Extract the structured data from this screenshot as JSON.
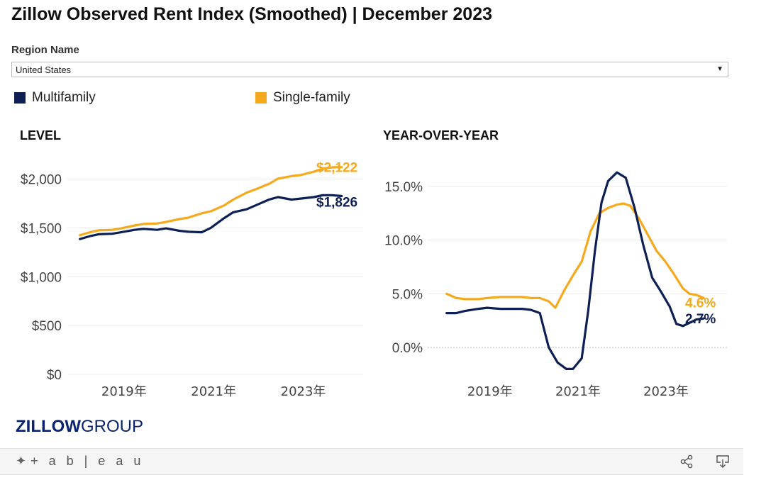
{
  "title": "Zillow Observed Rent Index (Smoothed) | December 2023",
  "filter": {
    "label": "Region Name",
    "value": "United States"
  },
  "legend": [
    {
      "name": "Multifamily",
      "color": "#0e1f56"
    },
    {
      "name": "Single-family",
      "color": "#f5a91c"
    }
  ],
  "brand": {
    "logo_bold": "ZILLOW",
    "logo_light": "GROUP",
    "tableau": "+ a b | e a u"
  },
  "toolbar": {
    "share_icon": "share-icon",
    "download_icon": "download-icon"
  },
  "chart_data": [
    {
      "type": "line",
      "title": "LEVEL",
      "ylim": [
        0,
        2200
      ],
      "y_ticks": [
        {
          "value": 0,
          "label": "$0"
        },
        {
          "value": 500,
          "label": "$500"
        },
        {
          "value": 1000,
          "label": "$1,000"
        },
        {
          "value": 1500,
          "label": "$1,500"
        },
        {
          "value": 2000,
          "label": "$2,000"
        }
      ],
      "x_ticks": [
        {
          "value": 2019,
          "label": "2019年"
        },
        {
          "value": 2021,
          "label": "2021年"
        },
        {
          "value": 2023,
          "label": "2023年"
        }
      ],
      "xlim": [
        2017.8,
        2024.4
      ],
      "series": [
        {
          "name": "Single-family",
          "color": "#f5a91c",
          "end_label": "$2,122",
          "x": [
            2018.08,
            2018.3,
            2018.5,
            2018.8,
            2019.0,
            2019.3,
            2019.5,
            2019.8,
            2020.0,
            2020.3,
            2020.5,
            2020.8,
            2021.0,
            2021.3,
            2021.5,
            2021.8,
            2022.0,
            2022.3,
            2022.5,
            2022.8,
            2023.0,
            2023.3,
            2023.5,
            2023.7,
            2023.92
          ],
          "y": [
            1425,
            1455,
            1475,
            1480,
            1495,
            1525,
            1540,
            1545,
            1560,
            1590,
            1605,
            1650,
            1670,
            1730,
            1790,
            1860,
            1895,
            1950,
            2005,
            2030,
            2040,
            2075,
            2105,
            2120,
            2122
          ]
        },
        {
          "name": "Multifamily",
          "color": "#0e1f56",
          "end_label": "$1,826",
          "x": [
            2018.08,
            2018.3,
            2018.5,
            2018.8,
            2019.0,
            2019.3,
            2019.5,
            2019.8,
            2020.0,
            2020.3,
            2020.5,
            2020.8,
            2021.0,
            2021.3,
            2021.5,
            2021.8,
            2022.0,
            2022.3,
            2022.5,
            2022.8,
            2023.0,
            2023.3,
            2023.5,
            2023.7,
            2023.92
          ],
          "y": [
            1385,
            1415,
            1435,
            1440,
            1455,
            1480,
            1490,
            1480,
            1495,
            1470,
            1460,
            1455,
            1500,
            1600,
            1660,
            1690,
            1730,
            1790,
            1815,
            1790,
            1800,
            1815,
            1835,
            1835,
            1826
          ]
        }
      ]
    },
    {
      "type": "line",
      "title": "YEAR-OVER-YEAR",
      "ylim": [
        -2.5,
        17.5
      ],
      "y_ticks": [
        {
          "value": 0,
          "label": "0.0%"
        },
        {
          "value": 5,
          "label": "5.0%"
        },
        {
          "value": 10,
          "label": "10.0%"
        },
        {
          "value": 15,
          "label": "15.0%"
        }
      ],
      "x_ticks": [
        {
          "value": 2019,
          "label": "2019年"
        },
        {
          "value": 2021,
          "label": "2021年"
        },
        {
          "value": 2023,
          "label": "2023年"
        }
      ],
      "xlim": [
        2017.65,
        2024.45
      ],
      "series": [
        {
          "name": "Single-family",
          "color": "#f5a91c",
          "end_label": "4.6%",
          "x": [
            2018.08,
            2018.3,
            2018.5,
            2018.8,
            2019.0,
            2019.3,
            2019.5,
            2019.8,
            2020.0,
            2020.2,
            2020.4,
            2020.55,
            2020.75,
            2020.95,
            2021.15,
            2021.35,
            2021.55,
            2021.75,
            2021.95,
            2022.1,
            2022.25,
            2022.45,
            2022.65,
            2022.85,
            2023.05,
            2023.25,
            2023.45,
            2023.6,
            2023.75,
            2023.92
          ],
          "y": [
            5.0,
            4.6,
            4.5,
            4.5,
            4.6,
            4.7,
            4.7,
            4.7,
            4.6,
            4.6,
            4.3,
            3.7,
            5.3,
            6.7,
            8.0,
            10.8,
            12.5,
            13.0,
            13.3,
            13.4,
            13.2,
            12.0,
            10.5,
            9.0,
            8.0,
            6.8,
            5.5,
            5.0,
            4.9,
            4.6
          ]
        },
        {
          "name": "Multifamily",
          "color": "#0e1f56",
          "end_label": "2.7%",
          "x": [
            2018.08,
            2018.3,
            2018.5,
            2018.8,
            2019.0,
            2019.3,
            2019.5,
            2019.8,
            2020.0,
            2020.2,
            2020.4,
            2020.6,
            2020.8,
            2020.95,
            2021.15,
            2021.3,
            2021.45,
            2021.6,
            2021.75,
            2021.95,
            2022.15,
            2022.35,
            2022.55,
            2022.75,
            2022.95,
            2023.15,
            2023.3,
            2023.45,
            2023.6,
            2023.75,
            2023.92
          ],
          "y": [
            3.2,
            3.2,
            3.4,
            3.6,
            3.7,
            3.6,
            3.6,
            3.6,
            3.5,
            3.2,
            0.0,
            -1.4,
            -2.0,
            -2.0,
            -1.0,
            3.5,
            9.0,
            13.5,
            15.5,
            16.3,
            15.8,
            13.0,
            9.5,
            6.5,
            5.2,
            3.8,
            2.2,
            2.0,
            2.3,
            2.6,
            2.7
          ]
        }
      ]
    }
  ]
}
